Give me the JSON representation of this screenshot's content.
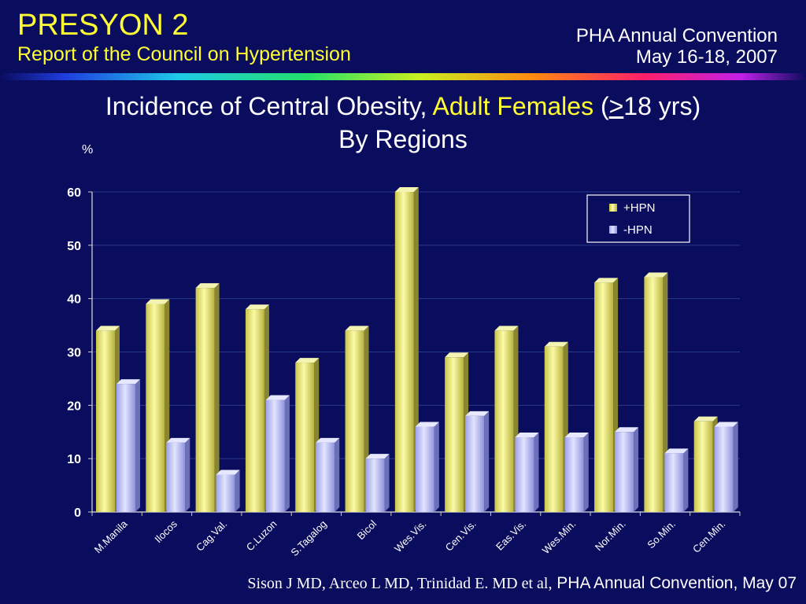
{
  "header": {
    "brand": "PRESYON 2",
    "subtitle": "Report of the Council on Hypertension",
    "conference_line1": "PHA Annual Convention",
    "conference_line2": "May 16-18, 2007"
  },
  "slide_title": {
    "part1": "Incidence of Central Obesity, ",
    "highlight": "Adult Females",
    "part2": " (",
    "ge": ">",
    "part3": "18 yrs)",
    "line2": "By Regions"
  },
  "footer": {
    "authors": "Sison J MD, Arceo L MD, Trinidad E. MD et al,",
    "source": "PHA Annual Convention, May 07"
  },
  "colors": {
    "background": "#0a0c5e",
    "accent": "#ffff33",
    "series_hpn_pos": "#efef82",
    "series_hpn_neg": "#c4c8ff"
  },
  "chart_data": {
    "type": "bar",
    "title": "",
    "ylabel": "%",
    "xlabel": "",
    "ylim": [
      0,
      60
    ],
    "yticks": [
      0,
      10,
      20,
      30,
      40,
      50,
      60
    ],
    "grid": true,
    "legend_position": "top-right",
    "categories": [
      "M.Manila",
      "Ilocos",
      "Cag.Val.",
      "C.Luzon",
      "S.Tagalog",
      "Bicol",
      "Wes.Vis.",
      "Cen.Vis.",
      "Eas.Vis.",
      "Wes.Min.",
      "Nor.Min.",
      "So.Min.",
      "Cen.Min."
    ],
    "series": [
      {
        "name": "+HPN",
        "values": [
          34,
          39,
          42,
          38,
          28,
          34,
          60,
          29,
          34,
          31,
          43,
          44,
          17
        ]
      },
      {
        "name": "-HPN",
        "values": [
          24,
          13,
          7,
          21,
          13,
          10,
          16,
          18,
          14,
          14,
          15,
          11,
          16
        ]
      }
    ]
  }
}
